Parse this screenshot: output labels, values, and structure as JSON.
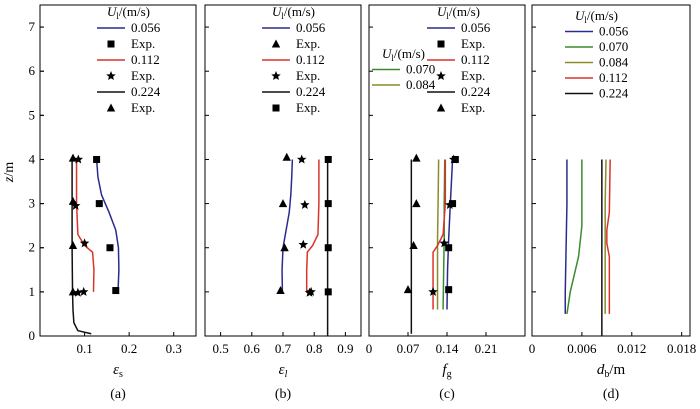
{
  "y_axis": {
    "label_main": "z",
    "label_unit": "/m",
    "ticks": [
      "0",
      "1",
      "2",
      "3",
      "4",
      "5",
      "6",
      "7"
    ]
  },
  "chart_data": [
    {
      "type": "line",
      "panel": "(a)",
      "xlabel_main": "ε",
      "xlabel_sub": "s",
      "xlim": [
        0,
        0.35
      ],
      "ylim": [
        0,
        7.5
      ],
      "xticks": [
        0.1,
        0.2,
        0.3
      ],
      "xtick_labels": [
        "0.1",
        "0.2",
        "0.3"
      ],
      "legend": {
        "title_main": "U",
        "title_sub": "l",
        "title_unit": "/(m/s)",
        "entries": [
          {
            "label": "0.056",
            "kind": "line",
            "color": "#2b2b8c"
          },
          {
            "label": "Exp.",
            "kind": "marker",
            "marker": "square"
          },
          {
            "label": "0.112",
            "kind": "line",
            "color": "#d9342b"
          },
          {
            "label": "Exp.",
            "kind": "marker",
            "marker": "star"
          },
          {
            "label": "0.224",
            "kind": "line",
            "color": "#111111"
          },
          {
            "label": "Exp.",
            "kind": "marker",
            "marker": "triangle"
          }
        ]
      },
      "series": [
        {
          "name": "0.056",
          "color": "#2b2b8c",
          "points": [
            [
              0.175,
              1.0
            ],
            [
              0.177,
              1.5
            ],
            [
              0.176,
              2.0
            ],
            [
              0.17,
              2.4
            ],
            [
              0.155,
              2.8
            ],
            [
              0.138,
              3.2
            ],
            [
              0.13,
              3.6
            ],
            [
              0.127,
              4.0
            ]
          ]
        },
        {
          "name": "0.112",
          "color": "#d9342b",
          "points": [
            [
              0.12,
              1.0
            ],
            [
              0.121,
              1.5
            ],
            [
              0.118,
              1.9
            ],
            [
              0.1,
              2.05
            ],
            [
              0.085,
              2.3
            ],
            [
              0.082,
              3.0
            ],
            [
              0.082,
              3.5
            ],
            [
              0.082,
              4.0
            ]
          ]
        },
        {
          "name": "0.224",
          "color": "#111111",
          "points": [
            [
              0.115,
              0.05
            ],
            [
              0.085,
              0.12
            ],
            [
              0.076,
              0.3
            ],
            [
              0.074,
              0.6
            ],
            [
              0.073,
              1.0
            ],
            [
              0.072,
              2.0
            ],
            [
              0.072,
              3.0
            ],
            [
              0.072,
              4.0
            ]
          ]
        }
      ],
      "markers": [
        {
          "marker": "square",
          "points": [
            [
              0.127,
              4.0
            ],
            [
              0.133,
              3.0
            ],
            [
              0.157,
              2.0
            ],
            [
              0.17,
              1.03
            ]
          ]
        },
        {
          "marker": "star",
          "points": [
            [
              0.086,
              4.0
            ],
            [
              0.08,
              2.95
            ],
            [
              0.1,
              2.1
            ],
            [
              0.098,
              1.0
            ],
            [
              0.085,
              0.98
            ]
          ]
        },
        {
          "marker": "triangle",
          "points": [
            [
              0.074,
              4.03
            ],
            [
              0.074,
              3.05
            ],
            [
              0.074,
              2.05
            ],
            [
              0.074,
              1.0
            ]
          ]
        }
      ]
    },
    {
      "type": "line",
      "panel": "(b)",
      "xlabel_main": "ε",
      "xlabel_sub": "l",
      "xlim": [
        0.45,
        0.95
      ],
      "ylim": [
        0,
        7.5
      ],
      "xticks": [
        0.5,
        0.6,
        0.7,
        0.8,
        0.9
      ],
      "xtick_labels": [
        "0.5",
        "0.6",
        "0.7",
        "0.8",
        "0.9"
      ],
      "legend": {
        "title_main": "U",
        "title_sub": "l",
        "title_unit": "/(m/s)",
        "entries": [
          {
            "label": "0.056",
            "kind": "line",
            "color": "#2b2b8c"
          },
          {
            "label": "Exp.",
            "kind": "marker",
            "marker": "triangle"
          },
          {
            "label": "0.112",
            "kind": "line",
            "color": "#d9342b"
          },
          {
            "label": "Exp.",
            "kind": "marker",
            "marker": "star"
          },
          {
            "label": "0.224",
            "kind": "line",
            "color": "#111111"
          },
          {
            "label": "Exp.",
            "kind": "marker",
            "marker": "square"
          }
        ]
      },
      "series": [
        {
          "name": "0.056",
          "color": "#2b2b8c",
          "points": [
            [
              0.698,
              1.0
            ],
            [
              0.697,
              1.5
            ],
            [
              0.7,
              2.0
            ],
            [
              0.71,
              2.4
            ],
            [
              0.72,
              2.8
            ],
            [
              0.725,
              3.2
            ],
            [
              0.728,
              3.6
            ],
            [
              0.73,
              4.0
            ]
          ]
        },
        {
          "name": "0.112",
          "color": "#d9342b",
          "points": [
            [
              0.776,
              1.0
            ],
            [
              0.776,
              1.5
            ],
            [
              0.778,
              1.9
            ],
            [
              0.795,
              2.05
            ],
            [
              0.812,
              2.3
            ],
            [
              0.815,
              3.0
            ],
            [
              0.815,
              3.5
            ],
            [
              0.815,
              4.0
            ]
          ]
        },
        {
          "name": "0.224",
          "color": "#111111",
          "points": [
            [
              0.843,
              0.0
            ],
            [
              0.843,
              1.0
            ],
            [
              0.843,
              2.0
            ],
            [
              0.843,
              3.0
            ],
            [
              0.843,
              4.0
            ]
          ]
        }
      ],
      "markers": [
        {
          "marker": "triangle",
          "points": [
            [
              0.712,
              4.05
            ],
            [
              0.7,
              3.0
            ],
            [
              0.705,
              2.0
            ],
            [
              0.692,
              1.03
            ]
          ]
        },
        {
          "marker": "star",
          "points": [
            [
              0.76,
              4.0
            ],
            [
              0.77,
              2.97
            ],
            [
              0.765,
              2.07
            ],
            [
              0.79,
              1.0
            ],
            [
              0.785,
              0.98
            ]
          ]
        },
        {
          "marker": "square",
          "points": [
            [
              0.845,
              4.0
            ],
            [
              0.845,
              3.0
            ],
            [
              0.845,
              2.0
            ],
            [
              0.845,
              1.0
            ]
          ]
        }
      ]
    },
    {
      "type": "line",
      "panel": "(c)",
      "xlabel_main": "f",
      "xlabel_sub": "g",
      "xlim": [
        0,
        0.28
      ],
      "ylim": [
        0,
        7.5
      ],
      "xticks": [
        0,
        0.07,
        0.14,
        0.21
      ],
      "xtick_labels": [
        "0",
        "0.07",
        "0.14",
        "0.21"
      ],
      "legend": {
        "title_main": "U",
        "title_sub": "l",
        "title_unit": "/(m/s)",
        "entries": [
          {
            "label": "0.056",
            "kind": "line",
            "color": "#2b2b8c"
          },
          {
            "label": "Exp.",
            "kind": "marker",
            "marker": "square"
          },
          {
            "label": "0.112",
            "kind": "line",
            "color": "#d9342b"
          },
          {
            "label": "Exp.",
            "kind": "marker",
            "marker": "star"
          },
          {
            "label": "0.224",
            "kind": "line",
            "color": "#111111"
          },
          {
            "label": "Exp.",
            "kind": "marker",
            "marker": "triangle"
          }
        ]
      },
      "legend2": {
        "title_main": "U",
        "title_sub": "l",
        "title_unit": "/(m/s)",
        "entries": [
          {
            "label": "0.070",
            "kind": "line",
            "color": "#3a8a2e"
          },
          {
            "label": "0.084",
            "kind": "line",
            "color": "#8c8a2a"
          }
        ]
      },
      "series": [
        {
          "name": "0.056",
          "color": "#2b2b8c",
          "points": [
            [
              0.14,
              0.6
            ],
            [
              0.141,
              1.5
            ],
            [
              0.143,
              2.2
            ],
            [
              0.146,
              3.0
            ],
            [
              0.15,
              4.0
            ]
          ]
        },
        {
          "name": "0.070",
          "color": "#3a8a2e",
          "points": [
            [
              0.133,
              0.6
            ],
            [
              0.134,
              1.5
            ],
            [
              0.135,
              2.2
            ],
            [
              0.135,
              3.0
            ],
            [
              0.136,
              4.0
            ]
          ]
        },
        {
          "name": "0.084",
          "color": "#8c8a2a",
          "points": [
            [
              0.123,
              0.6
            ],
            [
              0.123,
              1.5
            ],
            [
              0.123,
              2.2
            ],
            [
              0.124,
              3.0
            ],
            [
              0.125,
              4.0
            ]
          ]
        },
        {
          "name": "0.112",
          "color": "#d9342b",
          "points": [
            [
              0.115,
              0.6
            ],
            [
              0.115,
              1.5
            ],
            [
              0.115,
              1.9
            ],
            [
              0.123,
              2.05
            ],
            [
              0.133,
              2.3
            ],
            [
              0.137,
              3.0
            ],
            [
              0.137,
              4.0
            ]
          ]
        },
        {
          "name": "0.224",
          "color": "#111111",
          "points": [
            [
              0.076,
              0.05
            ],
            [
              0.076,
              1.0
            ],
            [
              0.076,
              2.0
            ],
            [
              0.076,
              3.0
            ],
            [
              0.076,
              4.0
            ]
          ]
        }
      ],
      "markers": [
        {
          "marker": "square",
          "points": [
            [
              0.155,
              4.0
            ],
            [
              0.15,
              3.0
            ],
            [
              0.143,
              2.0
            ],
            [
              0.143,
              1.05
            ]
          ]
        },
        {
          "marker": "star",
          "points": [
            [
              0.152,
              4.0
            ],
            [
              0.145,
              2.97
            ],
            [
              0.135,
              2.1
            ],
            [
              0.115,
              1.0
            ]
          ]
        },
        {
          "marker": "triangle",
          "points": [
            [
              0.085,
              4.03
            ],
            [
              0.085,
              3.0
            ],
            [
              0.08,
              2.05
            ],
            [
              0.07,
              1.05
            ]
          ]
        }
      ]
    },
    {
      "type": "line",
      "panel": "(d)",
      "xlabel_main": "d",
      "xlabel_sub": "b",
      "xlabel_unit": "/m",
      "xlim": [
        0,
        0.019
      ],
      "ylim": [
        0,
        7.5
      ],
      "xticks": [
        0,
        0.006,
        0.012,
        0.018
      ],
      "xtick_labels": [
        "0",
        "0.006",
        "0.012",
        "0.018"
      ],
      "legend": {
        "title_main": "U",
        "title_sub": "l",
        "title_unit": "/(m/s)",
        "entries": [
          {
            "label": "0.056",
            "kind": "line",
            "color": "#2b2b8c"
          },
          {
            "label": "0.070",
            "kind": "line",
            "color": "#3a8a2e"
          },
          {
            "label": "0.084",
            "kind": "line",
            "color": "#8c8a2a"
          },
          {
            "label": "0.112",
            "kind": "line",
            "color": "#d9342b"
          },
          {
            "label": "0.224",
            "kind": "line",
            "color": "#111111"
          }
        ]
      },
      "series": [
        {
          "name": "0.056",
          "color": "#2b2b8c",
          "points": [
            [
              0.004,
              0.5
            ],
            [
              0.004,
              1.0
            ],
            [
              0.0041,
              2.0
            ],
            [
              0.0042,
              3.0
            ],
            [
              0.0042,
              4.0
            ]
          ]
        },
        {
          "name": "0.070",
          "color": "#3a8a2e",
          "points": [
            [
              0.0042,
              0.5
            ],
            [
              0.0046,
              1.0
            ],
            [
              0.0056,
              1.8
            ],
            [
              0.006,
              2.5
            ],
            [
              0.006,
              3.2
            ],
            [
              0.006,
              4.0
            ]
          ]
        },
        {
          "name": "0.084",
          "color": "#8c8a2a",
          "points": [
            [
              0.0088,
              0.5
            ],
            [
              0.0088,
              1.5
            ],
            [
              0.0088,
              2.0
            ],
            [
              0.0088,
              3.0
            ],
            [
              0.0089,
              4.0
            ]
          ]
        },
        {
          "name": "0.112",
          "color": "#d9342b",
          "points": [
            [
              0.0093,
              0.5
            ],
            [
              0.0093,
              1.8
            ],
            [
              0.009,
              2.1
            ],
            [
              0.009,
              2.4
            ],
            [
              0.0093,
              2.8
            ],
            [
              0.0094,
              4.0
            ]
          ]
        },
        {
          "name": "0.224",
          "color": "#111111",
          "points": [
            [
              0.0084,
              0.0
            ],
            [
              0.0084,
              1.0
            ],
            [
              0.0084,
              2.0
            ],
            [
              0.0084,
              3.0
            ],
            [
              0.0084,
              4.0
            ]
          ]
        }
      ],
      "markers": []
    }
  ]
}
